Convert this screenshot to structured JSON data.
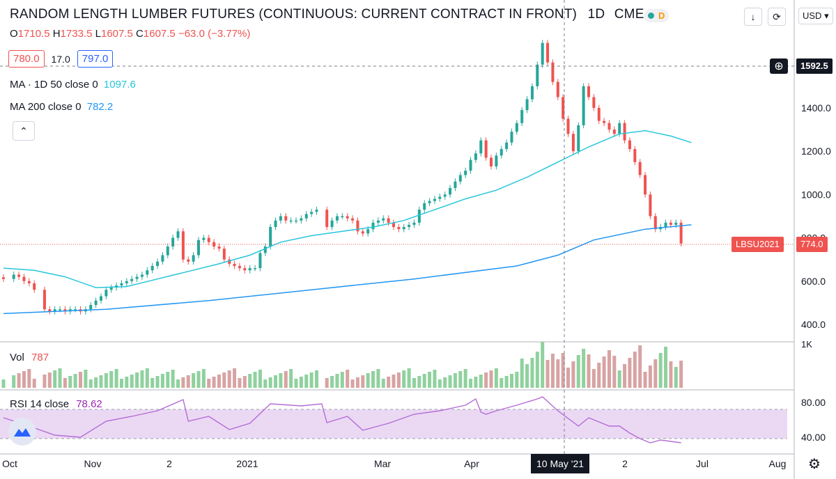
{
  "header": {
    "title": "RANDOM LENGTH LUMBER FUTURES (CONTINUOUS: CURRENT CONTRACT IN FRONT)",
    "interval": "1D",
    "exchange": "CME",
    "status_badge": "D",
    "currency": "USD",
    "o_label": "O",
    "o_value": "1710.5",
    "h_label": "H",
    "h_value": "1733.5",
    "l_label": "L",
    "l_value": "1607.5",
    "c_label": "C",
    "c_value": "1607.5",
    "change": "−63.0 (−3.77%)"
  },
  "quote": {
    "bid": "780.0",
    "spread": "17.0",
    "ask": "797.0"
  },
  "indicators": {
    "ma50_label": "MA · 1D 50 close 0",
    "ma50_value": "1097.6",
    "ma200_label": "MA 200 close 0",
    "ma200_value": "782.2",
    "vol_label": "Vol",
    "vol_value": "787",
    "rsi_label": "RSI 14 close",
    "rsi_value": "78.62"
  },
  "crosshair": {
    "price": "1592.5",
    "date": "10 May '21"
  },
  "last_price": {
    "symbol": "LBSU2021",
    "value": "774.0"
  },
  "colors": {
    "up": "#26a69a",
    "down": "#ef5350",
    "ma50": "#26c6da",
    "ma200": "#2196f3",
    "rsi": "#b46bd6",
    "vol_up": "#8fd19e",
    "vol_down": "#d8a3a3"
  },
  "chart_data": [
    {
      "type": "candlestick",
      "title": "RANDOM LENGTH LUMBER FUTURES (CONTINUOUS: CURRENT CONTRACT IN FRONT)",
      "x_ticks": [
        "Oct",
        "Nov",
        "2",
        "2021",
        "Mar",
        "Apr",
        "10 May '21",
        "2",
        "Jul",
        "Aug"
      ],
      "y_ticks": [
        400,
        600,
        800,
        1000,
        1200,
        1400
      ],
      "ylim": [
        370,
        1800
      ],
      "series": [
        {
          "name": "Price",
          "points": [
            [
              0,
              610
            ],
            [
              2,
              630
            ],
            [
              3,
              620
            ],
            [
              4,
              600
            ],
            [
              5,
              590
            ],
            [
              6,
              560
            ],
            [
              8,
              470
            ],
            [
              9,
              460
            ],
            [
              10,
              470
            ],
            [
              11,
              470
            ],
            [
              12,
              460
            ],
            [
              13,
              470
            ],
            [
              14,
              470
            ],
            [
              15,
              460
            ],
            [
              16,
              470
            ],
            [
              17,
              490
            ],
            [
              18,
              510
            ],
            [
              19,
              530
            ],
            [
              20,
              560
            ],
            [
              21,
              570
            ],
            [
              22,
              580
            ],
            [
              23,
              590
            ],
            [
              24,
              600
            ],
            [
              25,
              610
            ],
            [
              26,
              620
            ],
            [
              27,
              630
            ],
            [
              28,
              650
            ],
            [
              29,
              670
            ],
            [
              30,
              690
            ],
            [
              31,
              720
            ],
            [
              32,
              760
            ],
            [
              33,
              800
            ],
            [
              34,
              830
            ],
            [
              35,
              700
            ],
            [
              36,
              690
            ],
            [
              37,
              720
            ],
            [
              38,
              790
            ],
            [
              39,
              800
            ],
            [
              40,
              780
            ],
            [
              41,
              760
            ],
            [
              42,
              750
            ],
            [
              43,
              700
            ],
            [
              44,
              680
            ],
            [
              45,
              670
            ],
            [
              46,
              660
            ],
            [
              47,
              650
            ],
            [
              48,
              660
            ],
            [
              49,
              660
            ],
            [
              50,
              730
            ],
            [
              51,
              760
            ],
            [
              52,
              850
            ],
            [
              53,
              880
            ],
            [
              54,
              900
            ],
            [
              55,
              880
            ],
            [
              56,
              880
            ],
            [
              57,
              880
            ],
            [
              58,
              890
            ],
            [
              59,
              910
            ],
            [
              60,
              920
            ],
            [
              61,
              930
            ],
            [
              63,
              850
            ],
            [
              64,
              880
            ],
            [
              65,
              900
            ],
            [
              66,
              900
            ],
            [
              67,
              890
            ],
            [
              68,
              880
            ],
            [
              69,
              830
            ],
            [
              70,
              820
            ],
            [
              71,
              840
            ],
            [
              72,
              870
            ],
            [
              73,
              880
            ],
            [
              74,
              890
            ],
            [
              75,
              870
            ],
            [
              76,
              850
            ],
            [
              77,
              840
            ],
            [
              78,
              850
            ],
            [
              79,
              860
            ],
            [
              80,
              870
            ],
            [
              81,
              930
            ],
            [
              82,
              960
            ],
            [
              83,
              970
            ],
            [
              84,
              980
            ],
            [
              85,
              990
            ],
            [
              86,
              1000
            ],
            [
              87,
              1030
            ],
            [
              88,
              1060
            ],
            [
              89,
              1090
            ],
            [
              90,
              1110
            ],
            [
              91,
              1160
            ],
            [
              92,
              1190
            ],
            [
              93,
              1250
            ],
            [
              94,
              1170
            ],
            [
              95,
              1130
            ],
            [
              96,
              1180
            ],
            [
              97,
              1210
            ],
            [
              98,
              1240
            ],
            [
              99,
              1290
            ],
            [
              100,
              1330
            ],
            [
              101,
              1390
            ],
            [
              102,
              1440
            ],
            [
              103,
              1500
            ],
            [
              104,
              1600
            ],
            [
              105,
              1700
            ],
            [
              106,
              1610
            ],
            [
              107,
              1520
            ],
            [
              108,
              1450
            ],
            [
              109,
              1350
            ],
            [
              110,
              1280
            ],
            [
              111,
              1200
            ],
            [
              112,
              1320
            ],
            [
              113,
              1500
            ],
            [
              114,
              1450
            ],
            [
              115,
              1400
            ],
            [
              116,
              1340
            ],
            [
              117,
              1330
            ],
            [
              118,
              1300
            ],
            [
              119,
              1280
            ],
            [
              120,
              1330
            ],
            [
              121,
              1250
            ],
            [
              122,
              1210
            ],
            [
              123,
              1150
            ],
            [
              124,
              1090
            ],
            [
              125,
              1000
            ],
            [
              126,
              900
            ],
            [
              127,
              840
            ],
            [
              128,
              850
            ],
            [
              129,
              870
            ],
            [
              130,
              860
            ],
            [
              131,
              870
            ],
            [
              132,
              774
            ]
          ]
        },
        {
          "name": "MA · 1D 50 close 0",
          "points": [
            [
              0,
              660
            ],
            [
              6,
              650
            ],
            [
              12,
              620
            ],
            [
              18,
              570
            ],
            [
              24,
              575
            ],
            [
              30,
              610
            ],
            [
              36,
              645
            ],
            [
              42,
              680
            ],
            [
              48,
              720
            ],
            [
              54,
              780
            ],
            [
              60,
              810
            ],
            [
              66,
              830
            ],
            [
              72,
              850
            ],
            [
              78,
              880
            ],
            [
              84,
              930
            ],
            [
              90,
              980
            ],
            [
              96,
              1020
            ],
            [
              102,
              1080
            ],
            [
              108,
              1150
            ],
            [
              114,
              1220
            ],
            [
              120,
              1280
            ],
            [
              125,
              1295
            ],
            [
              130,
              1270
            ],
            [
              134,
              1240
            ]
          ]
        },
        {
          "name": "MA 200 close 0",
          "points": [
            [
              0,
              450
            ],
            [
              20,
              470
            ],
            [
              40,
              510
            ],
            [
              60,
              560
            ],
            [
              80,
              610
            ],
            [
              100,
              670
            ],
            [
              108,
              720
            ],
            [
              115,
              790
            ],
            [
              125,
              840
            ],
            [
              134,
              860
            ]
          ]
        }
      ]
    },
    {
      "type": "bar",
      "title": "Vol",
      "ylim": [
        0,
        1000
      ],
      "y_ticks_label": "1K",
      "last_value": "787"
    },
    {
      "type": "line",
      "title": "RSI 14 close",
      "ylim": [
        10,
        95
      ],
      "y_ticks": [
        40,
        80
      ],
      "band": [
        30,
        70
      ],
      "last_value": "78.62"
    }
  ]
}
